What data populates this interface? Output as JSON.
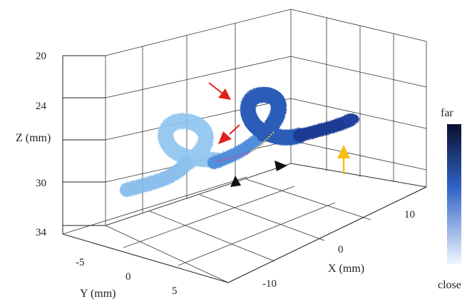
{
  "chart_data": {
    "type": "3d-volume-render",
    "axes": {
      "z": {
        "label": "Z (mm)",
        "ticks": [
          "20",
          "24",
          "27",
          "30",
          "34"
        ],
        "printed_ticks": [
          "20",
          "24",
          "30",
          "34"
        ],
        "range": [
          20,
          34
        ]
      },
      "y": {
        "label": "Y (mm)",
        "ticks": [
          "-5",
          "0",
          "5"
        ],
        "range": [
          -7,
          7
        ]
      },
      "x": {
        "label": "X (mm)",
        "ticks": [
          "-10",
          "0",
          "10"
        ],
        "range": [
          -14,
          14
        ]
      }
    },
    "colorbar": {
      "top_label": "far",
      "bottom_label": "close",
      "color_far": "#0a0f2e",
      "color_mid": "#2f63c6",
      "color_close": "#dcefff"
    },
    "annotations": [
      {
        "kind": "arrow",
        "color": "#e0201b",
        "name": "red-arrow-upper"
      },
      {
        "kind": "arrow",
        "color": "#e0201b",
        "name": "red-arrow-lower"
      },
      {
        "kind": "arrowhead",
        "color": "#111111",
        "name": "black-arrowhead-left"
      },
      {
        "kind": "arrowhead",
        "color": "#111111",
        "name": "black-arrowhead-right"
      },
      {
        "kind": "arrow",
        "color": "#f5c010",
        "name": "yellow-arrow"
      }
    ],
    "grid": true
  }
}
